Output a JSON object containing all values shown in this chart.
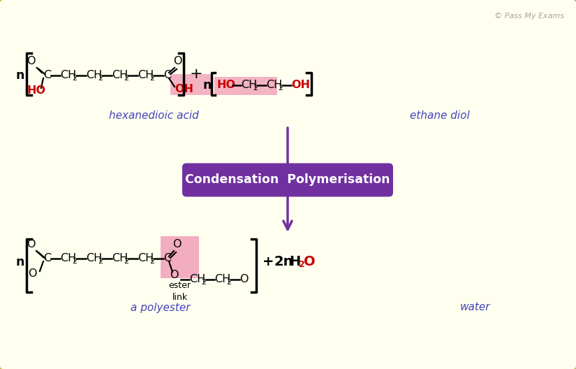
{
  "bg_color": "#fffff0",
  "border_color": "#c8b84a",
  "copyright": "© Pass My Exams",
  "arrow_color": "#7030a0",
  "banner_color": "#7030a0",
  "banner_text": "Condensation  Polymerisation",
  "banner_text_color": "#ffffff",
  "pink_highlight": "#f0a0b8",
  "red_color": "#cc0000",
  "blue_label_color": "#4444bb",
  "label_hexanedioic": "hexanedioic acid",
  "label_ethanediol": "ethane diol",
  "label_polyester": "a polyester",
  "label_ester": "ester\nlink",
  "label_water": "water"
}
